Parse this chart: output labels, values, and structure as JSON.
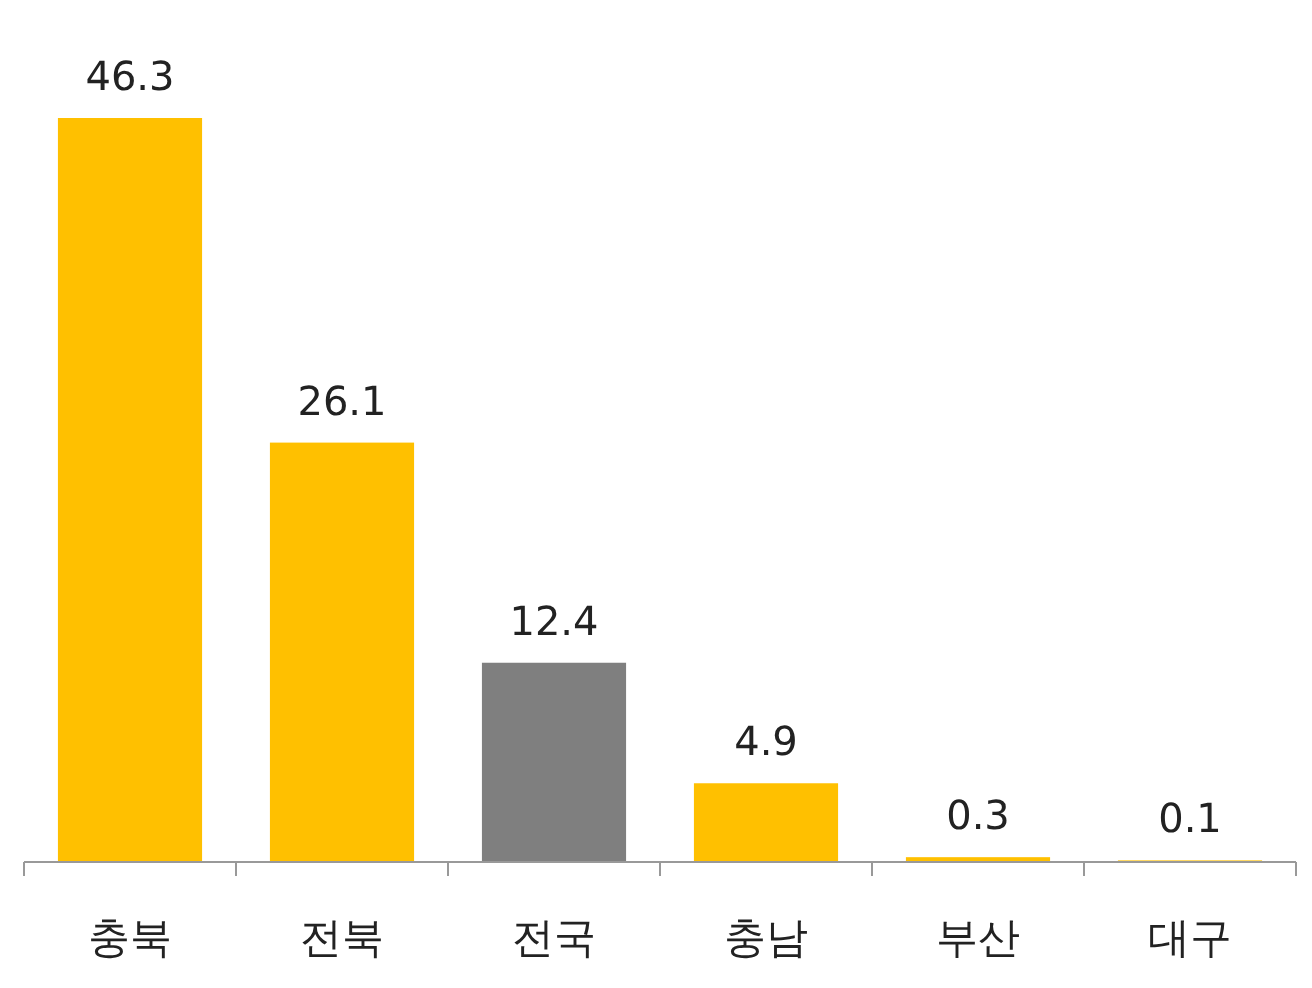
{
  "chart_data": {
    "type": "bar",
    "categories": [
      "충북",
      "전북",
      "전국",
      "충남",
      "부산",
      "대구"
    ],
    "values": [
      46.3,
      26.1,
      12.4,
      4.9,
      0.3,
      0.1
    ],
    "colors": [
      "#ffc000",
      "#ffc000",
      "#7f7f7f",
      "#ffc000",
      "#ffc000",
      "#ffc000"
    ],
    "data_labels": true
  }
}
